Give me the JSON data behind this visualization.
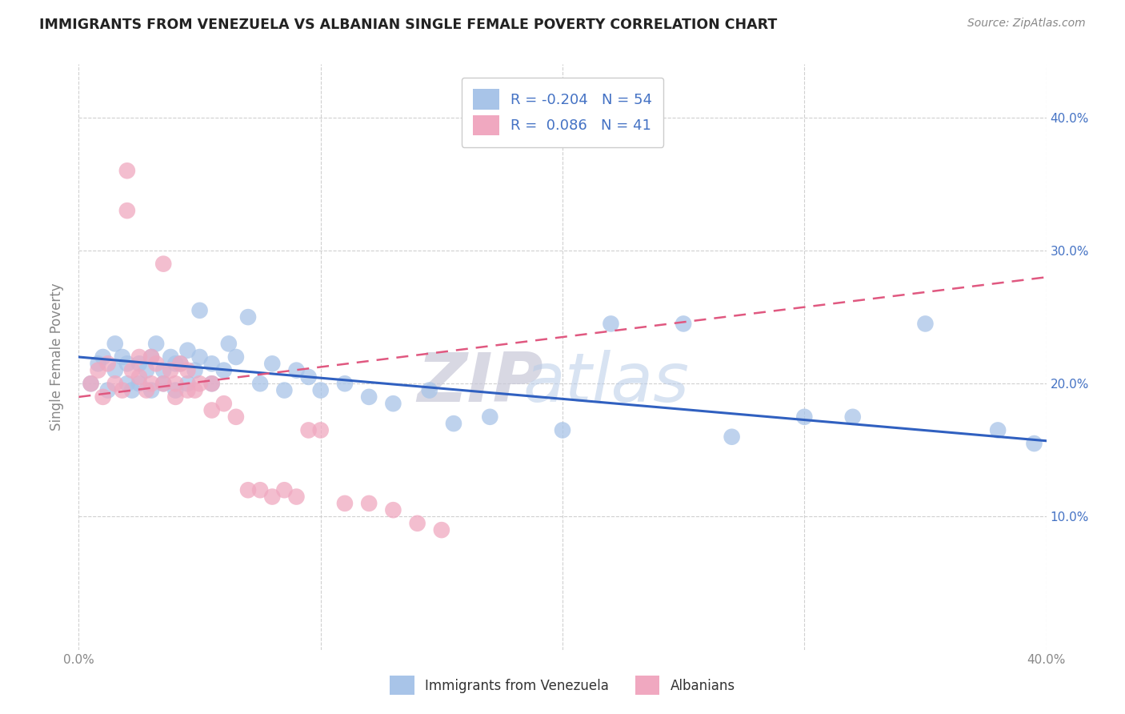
{
  "title": "IMMIGRANTS FROM VENEZUELA VS ALBANIAN SINGLE FEMALE POVERTY CORRELATION CHART",
  "source": "Source: ZipAtlas.com",
  "ylabel": "Single Female Poverty",
  "legend_label_blue": "Immigrants from Venezuela",
  "legend_label_pink": "Albanians",
  "R_blue": -0.204,
  "N_blue": 54,
  "R_pink": 0.086,
  "N_pink": 41,
  "xlim": [
    0.0,
    0.4
  ],
  "ylim": [
    0.0,
    0.44
  ],
  "yticks": [
    0.1,
    0.2,
    0.3,
    0.4
  ],
  "ytick_labels": [
    "10.0%",
    "20.0%",
    "30.0%",
    "40.0%"
  ],
  "xticks": [
    0.0,
    0.1,
    0.2,
    0.3,
    0.4
  ],
  "color_blue": "#a8c4e8",
  "color_pink": "#f0a8c0",
  "line_color_blue": "#3060c0",
  "line_color_pink": "#e05880",
  "watermark_zip": "ZIP",
  "watermark_atlas": "atlas",
  "background_color": "#ffffff",
  "grid_color": "#d0d0d0",
  "blue_scatter_x": [
    0.005,
    0.008,
    0.01,
    0.012,
    0.015,
    0.015,
    0.018,
    0.02,
    0.02,
    0.022,
    0.025,
    0.025,
    0.028,
    0.03,
    0.03,
    0.032,
    0.035,
    0.035,
    0.038,
    0.04,
    0.04,
    0.042,
    0.045,
    0.045,
    0.048,
    0.05,
    0.05,
    0.055,
    0.055,
    0.06,
    0.062,
    0.065,
    0.07,
    0.075,
    0.08,
    0.085,
    0.09,
    0.095,
    0.1,
    0.11,
    0.12,
    0.13,
    0.145,
    0.155,
    0.17,
    0.2,
    0.22,
    0.25,
    0.27,
    0.3,
    0.32,
    0.35,
    0.38,
    0.395
  ],
  "blue_scatter_y": [
    0.2,
    0.215,
    0.22,
    0.195,
    0.21,
    0.23,
    0.22,
    0.2,
    0.215,
    0.195,
    0.215,
    0.2,
    0.21,
    0.195,
    0.22,
    0.23,
    0.2,
    0.21,
    0.22,
    0.215,
    0.195,
    0.215,
    0.2,
    0.225,
    0.21,
    0.255,
    0.22,
    0.2,
    0.215,
    0.21,
    0.23,
    0.22,
    0.25,
    0.2,
    0.215,
    0.195,
    0.21,
    0.205,
    0.195,
    0.2,
    0.19,
    0.185,
    0.195,
    0.17,
    0.175,
    0.165,
    0.245,
    0.245,
    0.16,
    0.175,
    0.175,
    0.245,
    0.165,
    0.155
  ],
  "pink_scatter_x": [
    0.005,
    0.008,
    0.01,
    0.012,
    0.015,
    0.018,
    0.02,
    0.02,
    0.022,
    0.025,
    0.025,
    0.028,
    0.03,
    0.03,
    0.032,
    0.035,
    0.035,
    0.038,
    0.04,
    0.04,
    0.042,
    0.045,
    0.045,
    0.048,
    0.05,
    0.055,
    0.055,
    0.06,
    0.065,
    0.07,
    0.075,
    0.08,
    0.085,
    0.09,
    0.095,
    0.1,
    0.11,
    0.12,
    0.13,
    0.14,
    0.15
  ],
  "pink_scatter_y": [
    0.2,
    0.21,
    0.19,
    0.215,
    0.2,
    0.195,
    0.33,
    0.36,
    0.21,
    0.205,
    0.22,
    0.195,
    0.2,
    0.22,
    0.215,
    0.29,
    0.2,
    0.21,
    0.2,
    0.19,
    0.215,
    0.195,
    0.21,
    0.195,
    0.2,
    0.2,
    0.18,
    0.185,
    0.175,
    0.12,
    0.12,
    0.115,
    0.12,
    0.115,
    0.165,
    0.165,
    0.11,
    0.11,
    0.105,
    0.095,
    0.09
  ],
  "blue_line_x0": 0.0,
  "blue_line_x1": 0.4,
  "blue_line_y0": 0.22,
  "blue_line_y1": 0.157,
  "pink_line_x0": 0.0,
  "pink_line_x1": 0.4,
  "pink_line_y0": 0.19,
  "pink_line_y1": 0.28
}
